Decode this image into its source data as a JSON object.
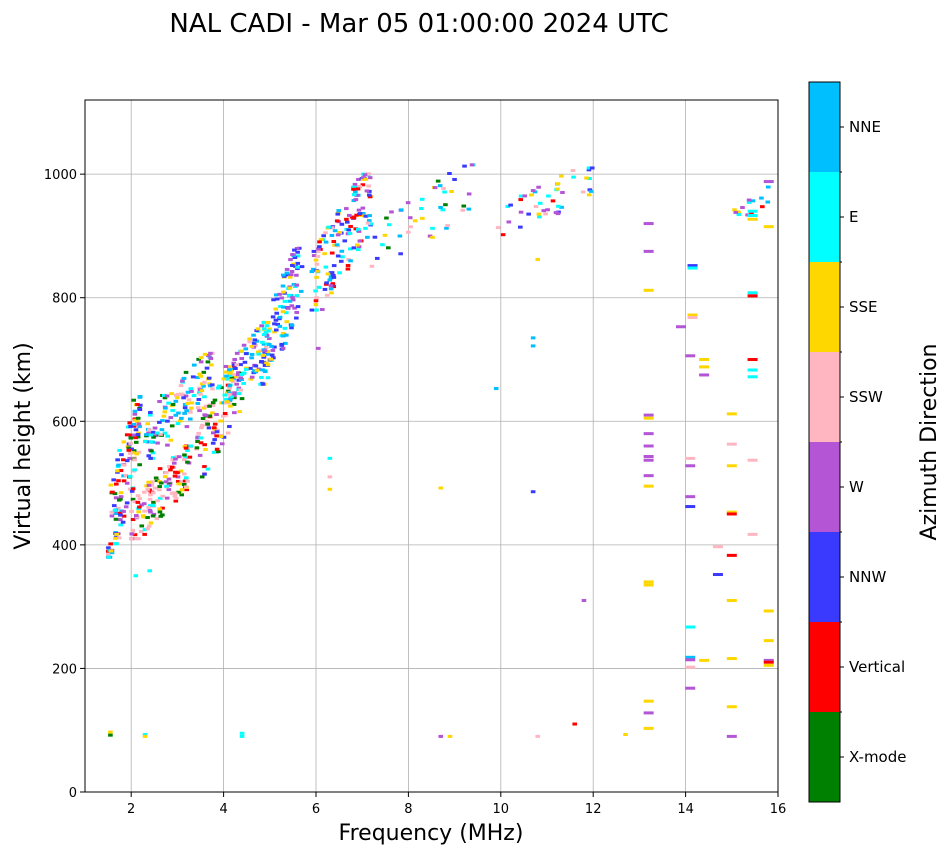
{
  "chart_data": {
    "type": "scatter",
    "title": "NAL CADI - Mar 05 01:00:00 2024 UTC",
    "xlabel": "Frequency (MHz)",
    "ylabel": "Virtual height (km)",
    "xlim": [
      1,
      16
    ],
    "ylim": [
      0,
      1120
    ],
    "xticks": [
      2,
      4,
      6,
      8,
      10,
      12,
      14,
      16
    ],
    "yticks": [
      0,
      200,
      400,
      600,
      800,
      1000
    ],
    "grid": true,
    "colorbar": {
      "title": "Azimuth Direction",
      "categories": [
        {
          "name": "X-mode",
          "color": "#008000"
        },
        {
          "name": "Vertical",
          "color": "#ff0000"
        },
        {
          "name": "NNW",
          "color": "#3a3aff"
        },
        {
          "name": "W",
          "color": "#b455d6"
        },
        {
          "name": "SSW",
          "color": "#ffb6c1"
        },
        {
          "name": "SSE",
          "color": "#ffd700"
        },
        {
          "name": "E",
          "color": "#00ffff"
        },
        {
          "name": "NNE",
          "color": "#00bfff"
        }
      ]
    },
    "clusters": [
      {
        "f": [
          1.5,
          2.2
        ],
        "h": [
          380,
          640
        ],
        "n": 130,
        "mix": [
          "SSE",
          "E",
          "Vertical",
          "X-mode",
          "SSW",
          "NNW",
          "NNE",
          "W"
        ]
      },
      {
        "f": [
          2.0,
          3.3
        ],
        "h": [
          410,
          560
        ],
        "n": 140,
        "mix": [
          "SSW",
          "SSW",
          "SSW",
          "W",
          "X-mode",
          "SSE",
          "E",
          "Vertical"
        ]
      },
      {
        "f": [
          2.3,
          3.8
        ],
        "h": [
          540,
          710
        ],
        "n": 130,
        "mix": [
          "SSE",
          "E",
          "NNW",
          "W",
          "SSW",
          "X-mode",
          "NNE"
        ]
      },
      {
        "f": [
          3.4,
          4.4
        ],
        "h": [
          510,
          700
        ],
        "n": 90,
        "mix": [
          "SSW",
          "W",
          "E",
          "SSE",
          "Vertical",
          "X-mode",
          "NNW"
        ]
      },
      {
        "f": [
          4.0,
          5.0
        ],
        "h": [
          630,
          760
        ],
        "n": 100,
        "mix": [
          "E",
          "NNE",
          "SSE",
          "NNW",
          "W",
          "SSW"
        ]
      },
      {
        "f": [
          4.8,
          5.7
        ],
        "h": [
          660,
          880
        ],
        "n": 120,
        "mix": [
          "NNW",
          "NNW",
          "E",
          "NNE",
          "W",
          "SSE"
        ]
      },
      {
        "f": [
          5.9,
          7.2
        ],
        "h": [
          780,
          1000
        ],
        "n": 150,
        "mix": [
          "W",
          "NNW",
          "NNW",
          "SSE",
          "E",
          "SSW",
          "NNE",
          "Vertical"
        ]
      },
      {
        "f": [
          7.2,
          9.5
        ],
        "h": [
          850,
          1015
        ],
        "n": 45,
        "mix": [
          "W",
          "SSE",
          "E",
          "NNE",
          "SSW",
          "X-mode",
          "NNW"
        ]
      },
      {
        "f": [
          9.9,
          12.0
        ],
        "h": [
          900,
          1010
        ],
        "n": 45,
        "mix": [
          "W",
          "SSW",
          "NNE",
          "SSE",
          "E",
          "NNW",
          "Vertical"
        ]
      },
      {
        "f": [
          15.0,
          15.9
        ],
        "h": [
          920,
          990
        ],
        "n": 14,
        "mix": [
          "E",
          "SSE",
          "NNE",
          "Vertical",
          "W"
        ]
      }
    ],
    "points": [
      {
        "f": 1.55,
        "h": 97,
        "a": "SSE"
      },
      {
        "f": 1.55,
        "h": 92,
        "a": "X-mode"
      },
      {
        "f": 2.3,
        "h": 93,
        "a": "E"
      },
      {
        "f": 2.3,
        "h": 90,
        "a": "SSE"
      },
      {
        "f": 4.4,
        "h": 95,
        "a": "E"
      },
      {
        "f": 4.4,
        "h": 90,
        "a": "E"
      },
      {
        "f": 2.1,
        "h": 350,
        "a": "E"
      },
      {
        "f": 2.4,
        "h": 358,
        "a": "E"
      },
      {
        "f": 6.0,
        "h": 795,
        "a": "Vertical"
      },
      {
        "f": 6.05,
        "h": 718,
        "a": "W"
      },
      {
        "f": 6.3,
        "h": 540,
        "a": "E"
      },
      {
        "f": 6.3,
        "h": 490,
        "a": "SSE"
      },
      {
        "f": 6.3,
        "h": 510,
        "a": "SSW"
      },
      {
        "f": 8.7,
        "h": 492,
        "a": "SSE"
      },
      {
        "f": 8.7,
        "h": 90,
        "a": "W"
      },
      {
        "f": 8.9,
        "h": 90,
        "a": "SSE"
      },
      {
        "f": 9.9,
        "h": 653,
        "a": "NNE"
      },
      {
        "f": 10.05,
        "h": 902,
        "a": "Vertical"
      },
      {
        "f": 10.7,
        "h": 735,
        "a": "NNE"
      },
      {
        "f": 10.7,
        "h": 722,
        "a": "NNE"
      },
      {
        "f": 10.7,
        "h": 486,
        "a": "NNW"
      },
      {
        "f": 10.8,
        "h": 862,
        "a": "SSE"
      },
      {
        "f": 10.8,
        "h": 90,
        "a": "SSW"
      },
      {
        "f": 11.6,
        "h": 110,
        "a": "Vertical"
      },
      {
        "f": 11.8,
        "h": 310,
        "a": "W"
      },
      {
        "f": 12.7,
        "h": 93,
        "a": "SSE"
      },
      {
        "f": 13.2,
        "h": 920,
        "a": "W"
      },
      {
        "f": 13.2,
        "h": 875,
        "a": "W"
      },
      {
        "f": 13.2,
        "h": 812,
        "a": "SSE"
      },
      {
        "f": 13.2,
        "h": 610,
        "a": "W"
      },
      {
        "f": 13.2,
        "h": 605,
        "a": "SSE"
      },
      {
        "f": 13.2,
        "h": 580,
        "a": "W"
      },
      {
        "f": 13.2,
        "h": 560,
        "a": "W"
      },
      {
        "f": 13.2,
        "h": 543,
        "a": "W"
      },
      {
        "f": 13.2,
        "h": 537,
        "a": "W"
      },
      {
        "f": 13.2,
        "h": 512,
        "a": "W"
      },
      {
        "f": 13.2,
        "h": 495,
        "a": "SSE"
      },
      {
        "f": 13.2,
        "h": 340,
        "a": "SSE"
      },
      {
        "f": 13.2,
        "h": 335,
        "a": "SSE"
      },
      {
        "f": 13.2,
        "h": 147,
        "a": "SSE"
      },
      {
        "f": 13.2,
        "h": 128,
        "a": "W"
      },
      {
        "f": 13.2,
        "h": 103,
        "a": "SSE"
      },
      {
        "f": 13.9,
        "h": 753,
        "a": "W"
      },
      {
        "f": 14.15,
        "h": 852,
        "a": "NNW"
      },
      {
        "f": 14.15,
        "h": 848,
        "a": "E"
      },
      {
        "f": 14.15,
        "h": 772,
        "a": "SSE"
      },
      {
        "f": 14.15,
        "h": 768,
        "a": "SSW"
      },
      {
        "f": 14.1,
        "h": 706,
        "a": "W"
      },
      {
        "f": 14.1,
        "h": 540,
        "a": "SSW"
      },
      {
        "f": 14.1,
        "h": 528,
        "a": "W"
      },
      {
        "f": 14.1,
        "h": 478,
        "a": "W"
      },
      {
        "f": 14.1,
        "h": 462,
        "a": "NNW"
      },
      {
        "f": 14.1,
        "h": 267,
        "a": "E"
      },
      {
        "f": 14.1,
        "h": 218,
        "a": "NNE"
      },
      {
        "f": 14.1,
        "h": 214,
        "a": "W"
      },
      {
        "f": 14.1,
        "h": 202,
        "a": "SSW"
      },
      {
        "f": 14.1,
        "h": 168,
        "a": "W"
      },
      {
        "f": 14.4,
        "h": 700,
        "a": "SSE"
      },
      {
        "f": 14.4,
        "h": 688,
        "a": "SSE"
      },
      {
        "f": 14.4,
        "h": 675,
        "a": "W"
      },
      {
        "f": 14.4,
        "h": 213,
        "a": "SSE"
      },
      {
        "f": 14.7,
        "h": 397,
        "a": "SSW"
      },
      {
        "f": 14.7,
        "h": 352,
        "a": "NNW"
      },
      {
        "f": 15.0,
        "h": 612,
        "a": "SSE"
      },
      {
        "f": 15.0,
        "h": 563,
        "a": "SSW"
      },
      {
        "f": 15.0,
        "h": 528,
        "a": "SSE"
      },
      {
        "f": 15.0,
        "h": 453,
        "a": "SSE"
      },
      {
        "f": 15.0,
        "h": 450,
        "a": "Vertical"
      },
      {
        "f": 15.0,
        "h": 383,
        "a": "Vertical"
      },
      {
        "f": 15.0,
        "h": 310,
        "a": "SSE"
      },
      {
        "f": 15.0,
        "h": 216,
        "a": "SSE"
      },
      {
        "f": 15.0,
        "h": 138,
        "a": "SSE"
      },
      {
        "f": 15.0,
        "h": 90,
        "a": "W"
      },
      {
        "f": 15.45,
        "h": 940,
        "a": "E"
      },
      {
        "f": 15.45,
        "h": 933,
        "a": "E"
      },
      {
        "f": 15.45,
        "h": 927,
        "a": "SSE"
      },
      {
        "f": 15.45,
        "h": 808,
        "a": "E"
      },
      {
        "f": 15.45,
        "h": 803,
        "a": "Vertical"
      },
      {
        "f": 15.45,
        "h": 700,
        "a": "Vertical"
      },
      {
        "f": 15.45,
        "h": 683,
        "a": "E"
      },
      {
        "f": 15.45,
        "h": 672,
        "a": "E"
      },
      {
        "f": 15.45,
        "h": 537,
        "a": "SSW"
      },
      {
        "f": 15.45,
        "h": 417,
        "a": "SSW"
      },
      {
        "f": 15.8,
        "h": 988,
        "a": "W"
      },
      {
        "f": 15.8,
        "h": 915,
        "a": "SSE"
      },
      {
        "f": 15.8,
        "h": 293,
        "a": "SSE"
      },
      {
        "f": 15.8,
        "h": 245,
        "a": "SSE"
      },
      {
        "f": 15.8,
        "h": 213,
        "a": "W"
      },
      {
        "f": 15.8,
        "h": 210,
        "a": "Vertical"
      },
      {
        "f": 15.8,
        "h": 205,
        "a": "SSE"
      }
    ]
  }
}
